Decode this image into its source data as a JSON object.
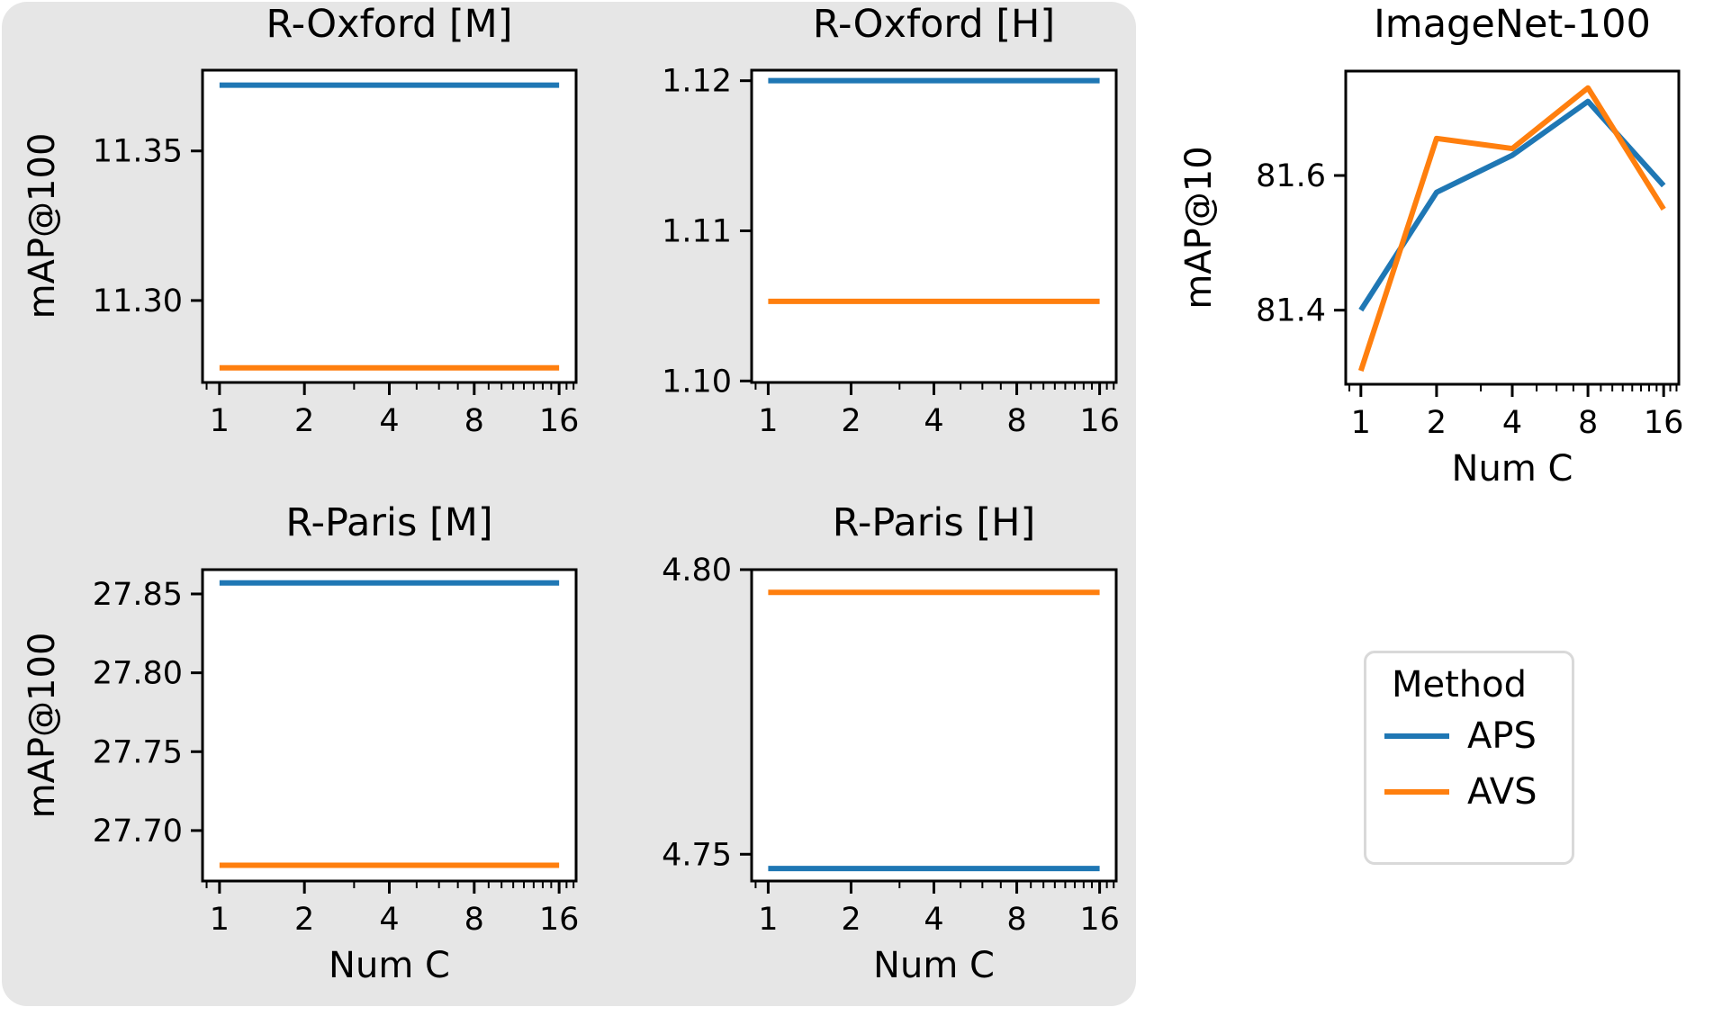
{
  "figure": {
    "background_color": "#ffffff",
    "panel_color": "#e6e6e6"
  },
  "colors": {
    "APS": "#1f77b4",
    "AVS": "#ff7f0e"
  },
  "legend": {
    "title": "Method",
    "position": "right-middle",
    "items": [
      {
        "label": "APS",
        "color": "#1f77b4"
      },
      {
        "label": "AVS",
        "color": "#ff7f0e"
      }
    ]
  },
  "chart_data": [
    {
      "type": "line",
      "title": "R-Oxford [M]",
      "ylabel": "mAP@100",
      "xlabel": "",
      "xscale": "log",
      "x": [
        1,
        2,
        4,
        8,
        16
      ],
      "xticklabels": [
        "1",
        "2",
        "4",
        "8",
        "16"
      ],
      "minor_xticks": [
        0.9,
        3,
        5,
        6,
        7,
        9,
        10,
        11,
        12,
        13,
        14,
        15,
        17,
        18
      ],
      "ylim": [
        11.2726,
        11.377
      ],
      "yticks": [
        {
          "v": 11.35,
          "label": "11.35"
        },
        {
          "v": 11.3,
          "label": "11.30"
        }
      ],
      "series": [
        {
          "name": "APS",
          "color": "#1f77b4",
          "values": [
            11.372,
            11.372,
            11.372,
            11.372,
            11.372
          ]
        },
        {
          "name": "AVS",
          "color": "#ff7f0e",
          "values": [
            11.2775,
            11.2775,
            11.2775,
            11.2775,
            11.2775
          ]
        }
      ]
    },
    {
      "type": "line",
      "title": "R-Oxford [H]",
      "ylabel": "",
      "xlabel": "",
      "xscale": "log",
      "x": [
        1,
        2,
        4,
        8,
        16
      ],
      "xticklabels": [
        "1",
        "2",
        "4",
        "8",
        "16"
      ],
      "minor_xticks": [
        0.9,
        3,
        5,
        6,
        7,
        9,
        10,
        11,
        12,
        13,
        14,
        15,
        17,
        18
      ],
      "ylim": [
        1.0999,
        1.1207
      ],
      "yticks": [
        {
          "v": 1.12,
          "label": "1.12"
        },
        {
          "v": 1.11,
          "label": "1.11"
        },
        {
          "v": 1.1,
          "label": "1.10"
        }
      ],
      "series": [
        {
          "name": "APS",
          "color": "#1f77b4",
          "values": [
            1.12,
            1.12,
            1.12,
            1.12,
            1.12
          ]
        },
        {
          "name": "AVS",
          "color": "#ff7f0e",
          "values": [
            1.1053,
            1.1053,
            1.1053,
            1.1053,
            1.1053
          ]
        }
      ]
    },
    {
      "type": "line",
      "title": "ImageNet-100",
      "ylabel": "mAP@10",
      "xlabel": "Num C",
      "xscale": "log",
      "x": [
        1,
        2,
        4,
        8,
        16
      ],
      "xticklabels": [
        "1",
        "2",
        "4",
        "8",
        "16"
      ],
      "minor_xticks": [
        0.9,
        3,
        5,
        6,
        7,
        9,
        10,
        11,
        12,
        13,
        14,
        15,
        17,
        18
      ],
      "ylim": [
        81.29,
        81.755
      ],
      "yticks": [
        {
          "v": 81.6,
          "label": "81.6"
        },
        {
          "v": 81.4,
          "label": "81.4"
        }
      ],
      "series": [
        {
          "name": "APS",
          "color": "#1f77b4",
          "values": [
            81.4,
            81.575,
            81.63,
            81.71,
            81.585
          ]
        },
        {
          "name": "AVS",
          "color": "#ff7f0e",
          "values": [
            81.31,
            81.655,
            81.64,
            81.73,
            81.55
          ]
        }
      ]
    },
    {
      "type": "line",
      "title": "R-Paris [M]",
      "ylabel": "mAP@100",
      "xlabel": "Num C",
      "xscale": "log",
      "x": [
        1,
        2,
        4,
        8,
        16
      ],
      "xticklabels": [
        "1",
        "2",
        "4",
        "8",
        "16"
      ],
      "minor_xticks": [
        0.9,
        3,
        5,
        6,
        7,
        9,
        10,
        11,
        12,
        13,
        14,
        15,
        17,
        18
      ],
      "ylim": [
        27.668,
        27.8654
      ],
      "yticks": [
        {
          "v": 27.85,
          "label": "27.85"
        },
        {
          "v": 27.8,
          "label": "27.80"
        },
        {
          "v": 27.75,
          "label": "27.75"
        },
        {
          "v": 27.7,
          "label": "27.70"
        }
      ],
      "series": [
        {
          "name": "APS",
          "color": "#1f77b4",
          "values": [
            27.857,
            27.857,
            27.857,
            27.857,
            27.857
          ]
        },
        {
          "name": "AVS",
          "color": "#ff7f0e",
          "values": [
            27.678,
            27.678,
            27.678,
            27.678,
            27.678
          ]
        }
      ]
    },
    {
      "type": "line",
      "title": "R-Paris [H]",
      "ylabel": "",
      "xlabel": "Num C",
      "xscale": "log",
      "x": [
        1,
        2,
        4,
        8,
        16
      ],
      "xticklabels": [
        "1",
        "2",
        "4",
        "8",
        "16"
      ],
      "minor_xticks": [
        0.9,
        3,
        5,
        6,
        7,
        9,
        10,
        11,
        12,
        13,
        14,
        15,
        17,
        18
      ],
      "ylim": [
        4.7453,
        4.8
      ],
      "yticks": [
        {
          "v": 4.8,
          "label": "4.80"
        },
        {
          "v": 4.75,
          "label": "4.75"
        }
      ],
      "series": [
        {
          "name": "APS",
          "color": "#1f77b4",
          "values": [
            4.7475,
            4.7475,
            4.7475,
            4.7475,
            4.7475
          ]
        },
        {
          "name": "AVS",
          "color": "#ff7f0e",
          "values": [
            4.796,
            4.796,
            4.796,
            4.796,
            4.796
          ]
        }
      ]
    }
  ]
}
